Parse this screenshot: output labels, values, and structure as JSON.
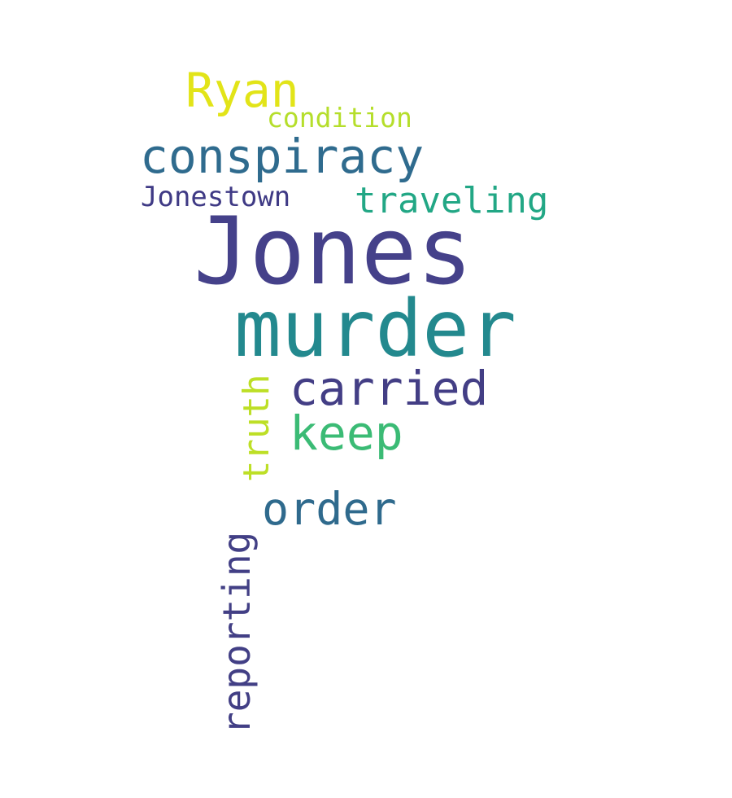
{
  "words": {
    "jones": {
      "text": "Jones",
      "color": "#45418a"
    },
    "murder": {
      "text": "murder",
      "color": "#23898e"
    },
    "conspiracy": {
      "text": "conspiracy",
      "color": "#2f6b8e"
    },
    "ryan": {
      "text": "Ryan",
      "color": "#e2e418"
    },
    "condition": {
      "text": "condition",
      "color": "#b5de2b"
    },
    "jonestown": {
      "text": "Jonestown",
      "color": "#3f3a85"
    },
    "traveling": {
      "text": "traveling",
      "color": "#22a785"
    },
    "carried": {
      "text": "carried",
      "color": "#433e85"
    },
    "keep": {
      "text": "keep",
      "color": "#3bbb75"
    },
    "order": {
      "text": "order",
      "color": "#2f6a8d"
    },
    "truth": {
      "text": "truth",
      "color": "#bddf26"
    },
    "reporting": {
      "text": "reporting",
      "color": "#423f85"
    }
  }
}
